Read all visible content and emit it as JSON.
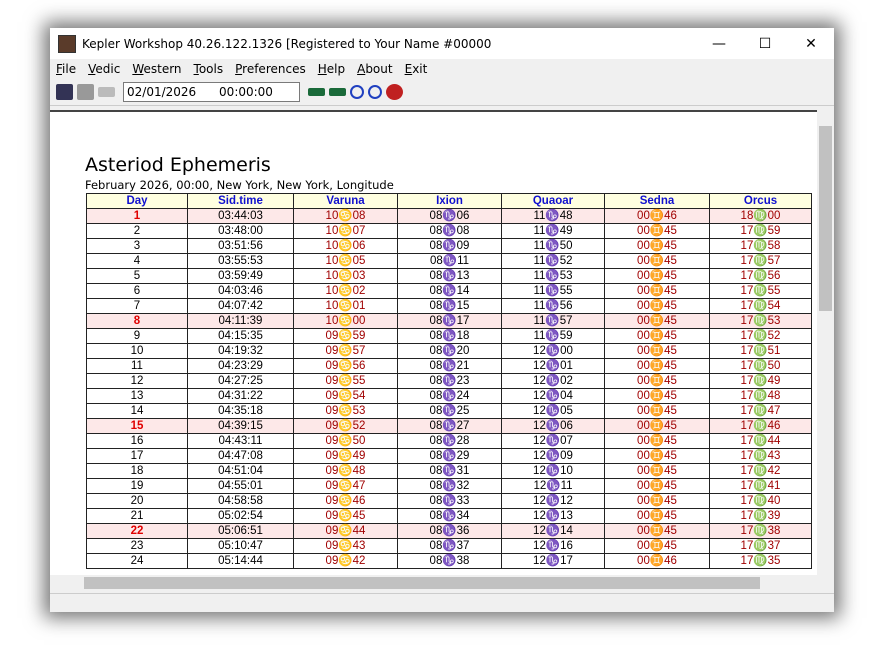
{
  "window": {
    "title": "Kepler Workshop 40.26.122.1326 [Registered to Your Name  #00000"
  },
  "menu": [
    "File",
    "Vedic",
    "Western",
    "Tools",
    "Preferences",
    "Help",
    "About",
    "Exit"
  ],
  "toolbar": {
    "date_field": "02/01/2026      00:00:00"
  },
  "report": {
    "title": "Asteriod Ephemeris",
    "subtitle": "February 2026, 00:00,  New York, New York, Longitude"
  },
  "table": {
    "columns": [
      "Day",
      "Sid.time",
      "Varuna",
      "Ixion",
      "Quaoar",
      "Sedna",
      "Orcus"
    ],
    "rows": [
      [
        "1",
        "03:44:03",
        "10♋08",
        "08♑06",
        "11♑48",
        "00♊46",
        "18♍00"
      ],
      [
        "2",
        "03:48:00",
        "10♋07",
        "08♑08",
        "11♑49",
        "00♊45",
        "17♍59"
      ],
      [
        "3",
        "03:51:56",
        "10♋06",
        "08♑09",
        "11♑50",
        "00♊45",
        "17♍58"
      ],
      [
        "4",
        "03:55:53",
        "10♋05",
        "08♑11",
        "11♑52",
        "00♊45",
        "17♍57"
      ],
      [
        "5",
        "03:59:49",
        "10♋03",
        "08♑13",
        "11♑53",
        "00♊45",
        "17♍56"
      ],
      [
        "6",
        "04:03:46",
        "10♋02",
        "08♑14",
        "11♑55",
        "00♊45",
        "17♍55"
      ],
      [
        "7",
        "04:07:42",
        "10♋01",
        "08♑15",
        "11♑56",
        "00♊45",
        "17♍54"
      ],
      [
        "8",
        "04:11:39",
        "10♋00",
        "08♑17",
        "11♑57",
        "00♊45",
        "17♍53"
      ],
      [
        "9",
        "04:15:35",
        "09♋59",
        "08♑18",
        "11♑59",
        "00♊45",
        "17♍52"
      ],
      [
        "10",
        "04:19:32",
        "09♋57",
        "08♑20",
        "12♑00",
        "00♊45",
        "17♍51"
      ],
      [
        "11",
        "04:23:29",
        "09♋56",
        "08♑21",
        "12♑01",
        "00♊45",
        "17♍50"
      ],
      [
        "12",
        "04:27:25",
        "09♋55",
        "08♑23",
        "12♑02",
        "00♊45",
        "17♍49"
      ],
      [
        "13",
        "04:31:22",
        "09♋54",
        "08♑24",
        "12♑04",
        "00♊45",
        "17♍48"
      ],
      [
        "14",
        "04:35:18",
        "09♋53",
        "08♑25",
        "12♑05",
        "00♊45",
        "17♍47"
      ],
      [
        "15",
        "04:39:15",
        "09♋52",
        "08♑27",
        "12♑06",
        "00♊45",
        "17♍46"
      ],
      [
        "16",
        "04:43:11",
        "09♋50",
        "08♑28",
        "12♑07",
        "00♊45",
        "17♍44"
      ],
      [
        "17",
        "04:47:08",
        "09♋49",
        "08♑29",
        "12♑09",
        "00♊45",
        "17♍43"
      ],
      [
        "18",
        "04:51:04",
        "09♋48",
        "08♑31",
        "12♑10",
        "00♊45",
        "17♍42"
      ],
      [
        "19",
        "04:55:01",
        "09♋47",
        "08♑32",
        "12♑11",
        "00♊45",
        "17♍41"
      ],
      [
        "20",
        "04:58:58",
        "09♋46",
        "08♑33",
        "12♑12",
        "00♊45",
        "17♍40"
      ],
      [
        "21",
        "05:02:54",
        "09♋45",
        "08♑34",
        "12♑13",
        "00♊45",
        "17♍39"
      ],
      [
        "22",
        "05:06:51",
        "09♋44",
        "08♑36",
        "12♑14",
        "00♊45",
        "17♍38"
      ],
      [
        "23",
        "05:10:47",
        "09♋43",
        "08♑37",
        "12♑16",
        "00♊45",
        "17♍37"
      ],
      [
        "24",
        "05:14:44",
        "09♋42",
        "08♑38",
        "12♑17",
        "00♊46",
        "17♍35"
      ]
    ]
  }
}
